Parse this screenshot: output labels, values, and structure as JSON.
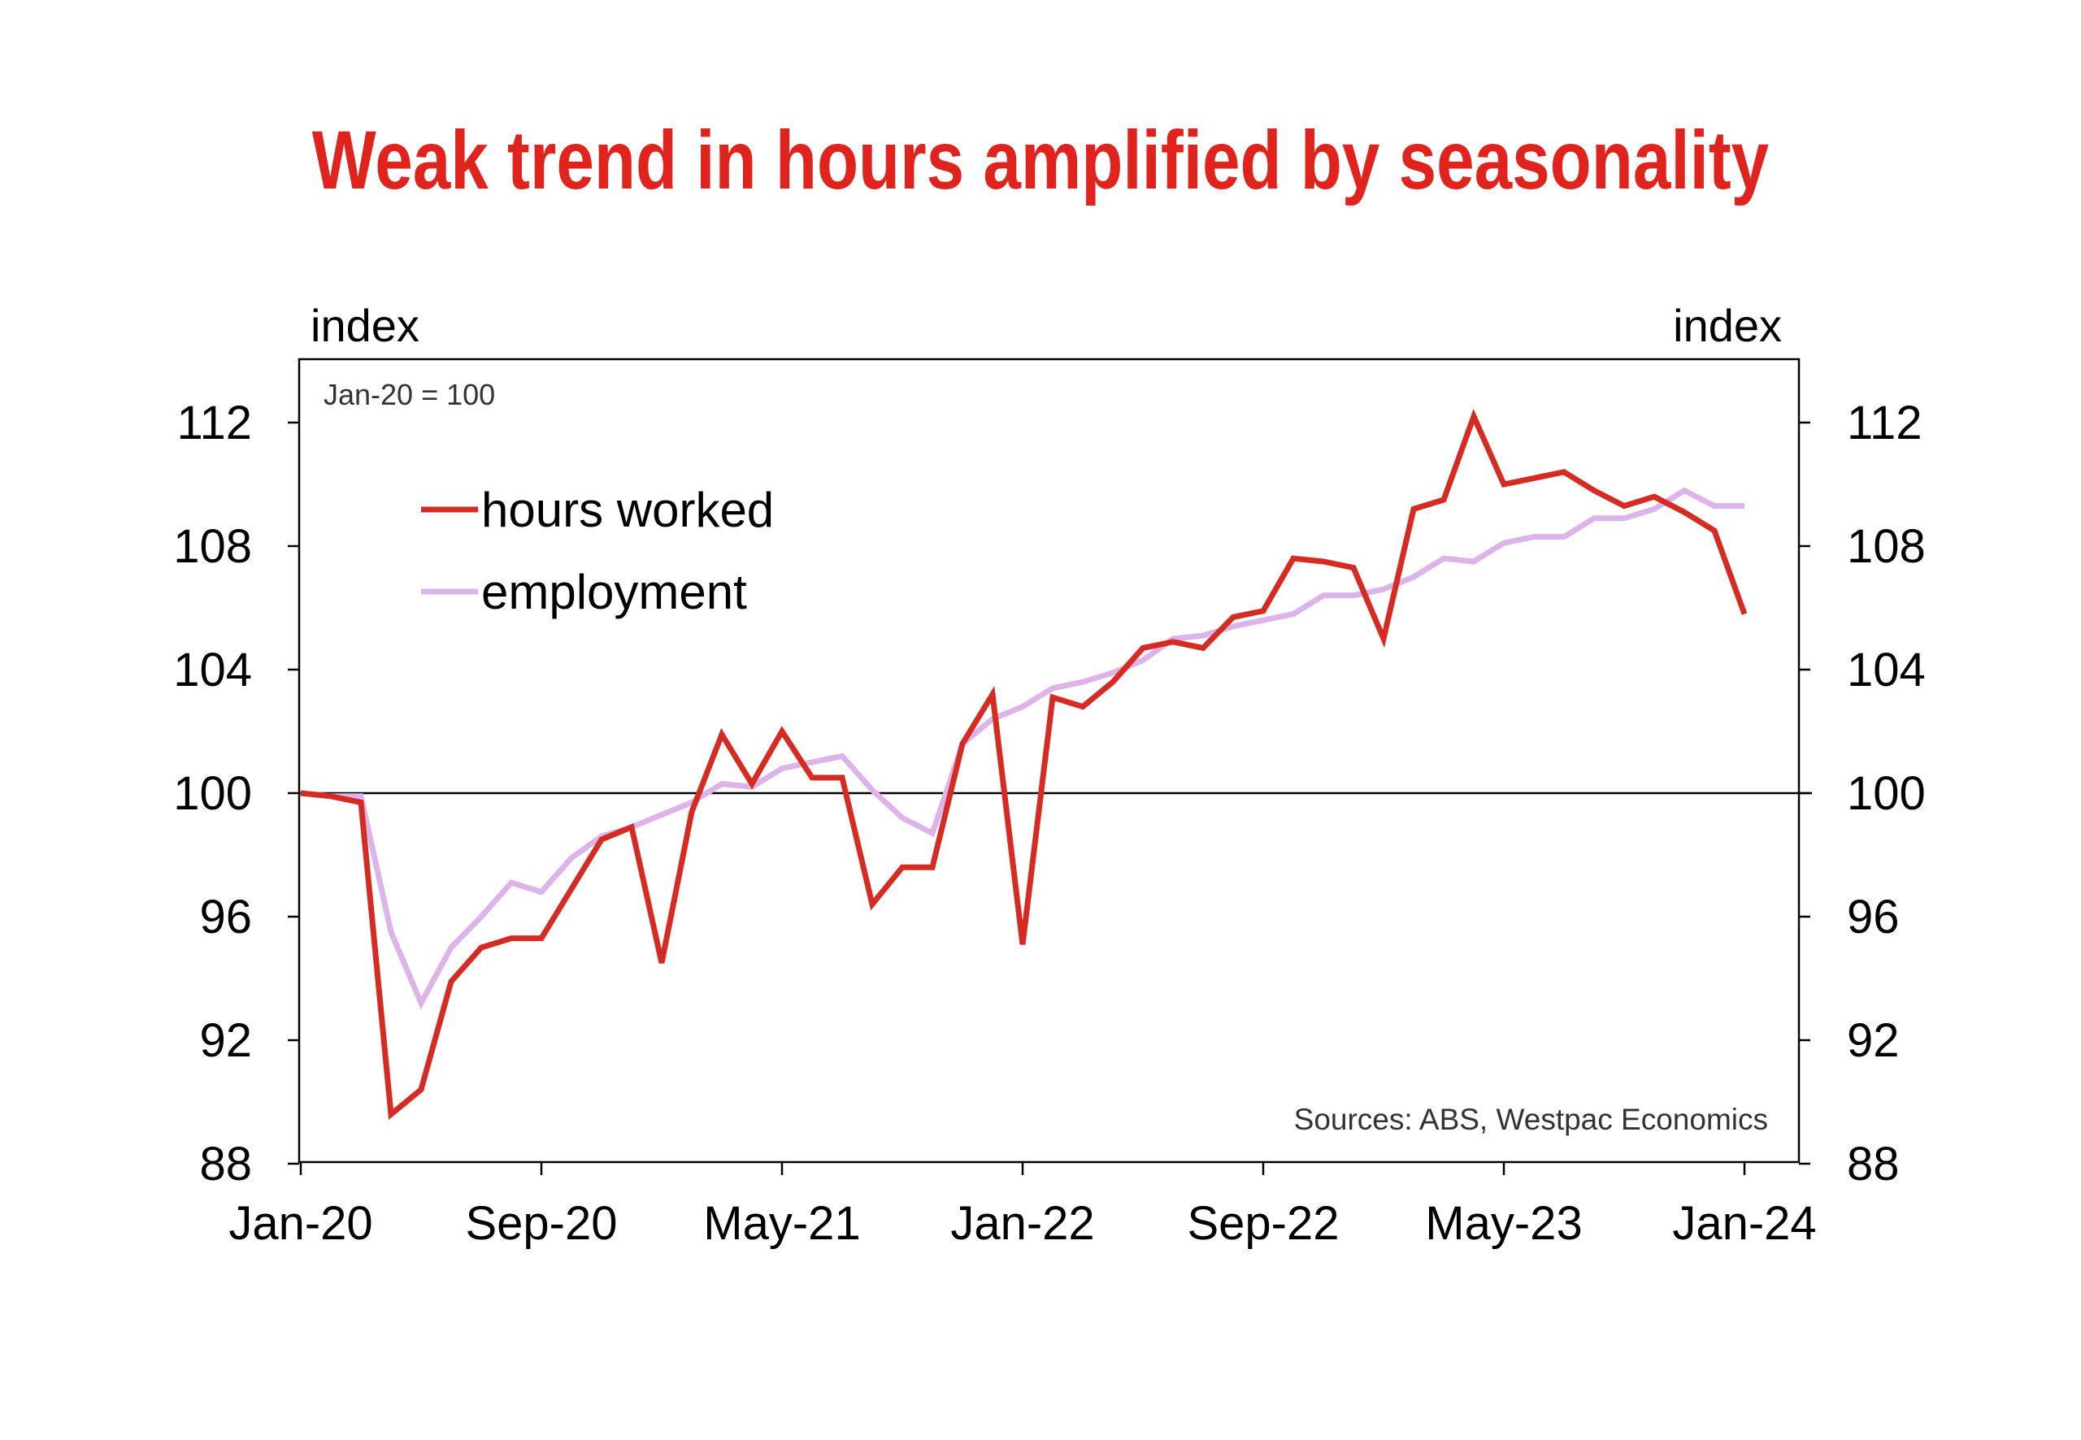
{
  "chart_data": {
    "type": "line",
    "title": "Weak trend in hours amplified by seasonality",
    "ylabel_left": "index",
    "ylabel_right": "index",
    "note": "Jan-20 = 100",
    "source": "Sources: ABS, Westpac Economics",
    "ylim": [
      88,
      114
    ],
    "yticks": [
      88,
      92,
      96,
      100,
      104,
      108,
      112
    ],
    "xticks": [
      "Jan-20",
      "Sep-20",
      "May-21",
      "Jan-22",
      "Sep-22",
      "May-23",
      "Jan-24"
    ],
    "reference_line": 100,
    "legend_position": "top-left",
    "x": [
      "Jan-20",
      "Feb-20",
      "Mar-20",
      "Apr-20",
      "May-20",
      "Jun-20",
      "Jul-20",
      "Aug-20",
      "Sep-20",
      "Oct-20",
      "Nov-20",
      "Dec-20",
      "Jan-21",
      "Feb-21",
      "Mar-21",
      "Apr-21",
      "May-21",
      "Jun-21",
      "Jul-21",
      "Aug-21",
      "Sep-21",
      "Oct-21",
      "Nov-21",
      "Dec-21",
      "Jan-22",
      "Feb-22",
      "Mar-22",
      "Apr-22",
      "May-22",
      "Jun-22",
      "Jul-22",
      "Aug-22",
      "Sep-22",
      "Oct-22",
      "Nov-22",
      "Dec-22",
      "Jan-23",
      "Feb-23",
      "Mar-23",
      "Apr-23",
      "May-23",
      "Jun-23",
      "Jul-23",
      "Aug-23",
      "Sep-23",
      "Oct-23",
      "Nov-23",
      "Dec-23",
      "Jan-24"
    ],
    "series": [
      {
        "name": "hours worked",
        "color": "#d52b22",
        "values": [
          100.0,
          99.9,
          99.7,
          89.6,
          90.4,
          93.9,
          95.0,
          95.3,
          95.3,
          96.9,
          98.5,
          98.9,
          94.5,
          99.4,
          101.9,
          100.3,
          102.0,
          100.5,
          100.5,
          96.4,
          97.6,
          97.6,
          101.6,
          103.2,
          95.1,
          103.1,
          102.8,
          103.6,
          104.7,
          104.9,
          104.7,
          105.7,
          105.9,
          107.6,
          107.5,
          107.3,
          105.0,
          109.2,
          109.5,
          112.2,
          110.0,
          110.2,
          110.4,
          109.8,
          109.3,
          109.6,
          109.1,
          108.5,
          105.8
        ]
      },
      {
        "name": "employment",
        "color": "#dcb4ea",
        "values": [
          100.0,
          99.9,
          99.9,
          95.5,
          93.2,
          95.0,
          96.0,
          97.1,
          96.8,
          97.9,
          98.6,
          98.9,
          99.3,
          99.7,
          100.3,
          100.2,
          100.8,
          101.0,
          101.2,
          100.1,
          99.2,
          98.7,
          101.6,
          102.4,
          102.8,
          103.4,
          103.6,
          103.9,
          104.3,
          105.0,
          105.1,
          105.4,
          105.6,
          105.8,
          106.4,
          106.4,
          106.6,
          107.0,
          107.6,
          107.5,
          108.1,
          108.3,
          108.3,
          108.9,
          108.9,
          109.2,
          109.8,
          109.3,
          109.3
        ]
      }
    ]
  }
}
